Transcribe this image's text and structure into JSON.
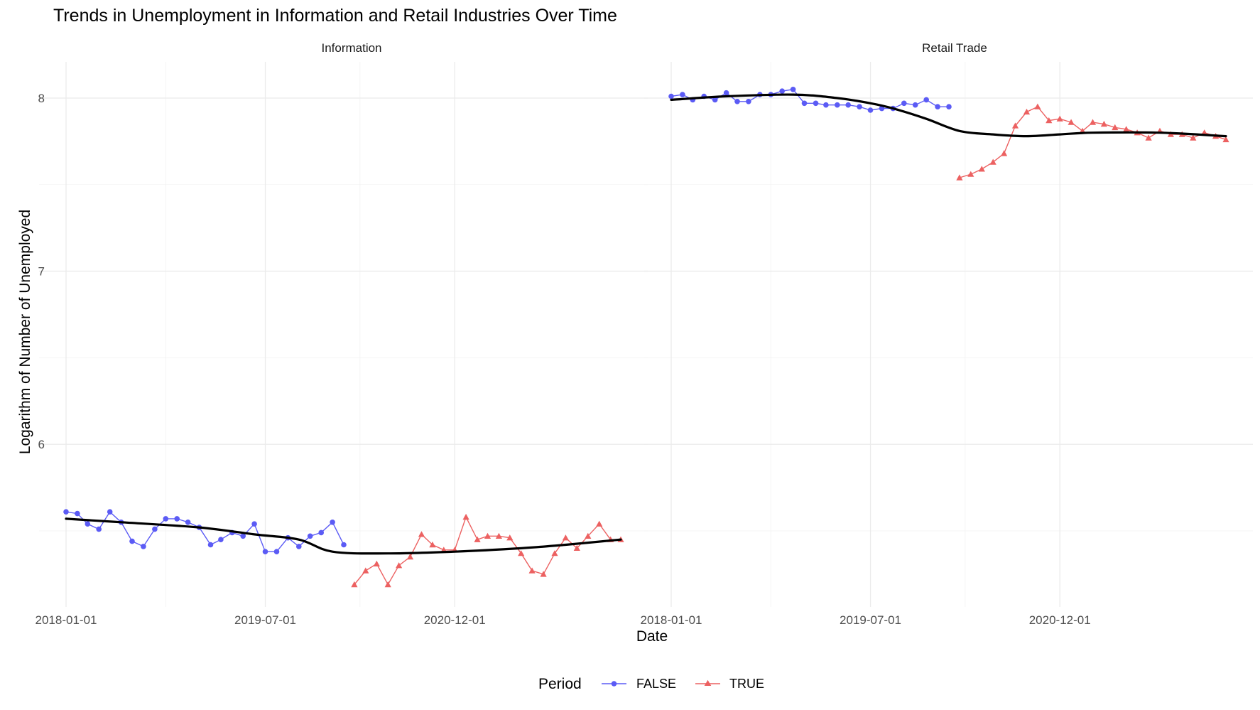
{
  "chart_data": {
    "type": "line",
    "title": "Trends in Unemployment in Information and Retail Industries Over Time",
    "xlabel": "Date",
    "ylabel": "Logarithm of Number of Unemployed",
    "x_ticks": [
      "2018-01-01",
      "2019-07-01",
      "2020-12-01"
    ],
    "y_ticks": [
      6,
      7,
      8
    ],
    "xlim": [
      "2018-01-01",
      "2022-03-01"
    ],
    "ylim": [
      5.11,
      8.16
    ],
    "grid": true,
    "legend": {
      "title": "Period",
      "position": "bottom",
      "entries": [
        {
          "label": "FALSE",
          "shape": "circle",
          "color": "#5b5bf5"
        },
        {
          "label": "TRUE",
          "shape": "triangle",
          "color": "#ec6161"
        }
      ]
    },
    "smooth_color": "#000000",
    "panels": [
      {
        "name": "Information",
        "series": [
          {
            "name": "FALSE",
            "x": [
              "2018-01-01",
              "2018-02-01",
              "2018-03-01",
              "2018-04-01",
              "2018-05-01",
              "2018-06-01",
              "2018-07-01",
              "2018-08-01",
              "2018-09-01",
              "2018-10-01",
              "2018-11-01",
              "2018-12-01",
              "2019-01-01",
              "2019-02-01",
              "2019-03-01",
              "2019-04-01",
              "2019-05-01",
              "2019-06-01",
              "2019-07-01",
              "2019-08-01",
              "2019-09-01",
              "2019-10-01",
              "2019-11-01",
              "2019-12-01",
              "2020-01-01",
              "2020-02-01"
            ],
            "y": [
              5.61,
              5.6,
              5.54,
              5.51,
              5.61,
              5.55,
              5.44,
              5.41,
              5.51,
              5.57,
              5.57,
              5.55,
              5.52,
              5.42,
              5.45,
              5.49,
              5.47,
              5.54,
              5.38,
              5.38,
              5.46,
              5.41,
              5.47,
              5.49,
              5.55,
              5.42
            ]
          },
          {
            "name": "TRUE",
            "x": [
              "2020-03-01",
              "2020-04-01",
              "2020-05-01",
              "2020-06-01",
              "2020-07-01",
              "2020-08-01",
              "2020-09-01",
              "2020-10-01",
              "2020-11-01",
              "2020-12-01",
              "2021-01-01",
              "2021-02-01",
              "2021-03-01",
              "2021-04-01",
              "2021-05-01",
              "2021-06-01",
              "2021-07-01",
              "2021-08-01",
              "2021-09-01",
              "2021-10-01",
              "2021-11-01",
              "2021-12-01",
              "2022-01-01",
              "2022-02-01",
              "2022-03-01"
            ],
            "y": [
              5.19,
              5.27,
              5.31,
              5.19,
              5.3,
              5.35,
              5.48,
              5.42,
              5.39,
              5.39,
              5.58,
              5.45,
              5.47,
              5.47,
              5.46,
              5.37,
              5.27,
              5.25,
              5.37,
              5.46,
              5.4,
              5.47,
              5.54,
              5.45,
              5.45
            ]
          }
        ],
        "smooth": {
          "x": [
            "2018-01-01",
            "2018-06-01",
            "2019-01-01",
            "2019-06-01",
            "2019-10-01",
            "2020-01-01",
            "2020-06-01",
            "2020-12-01",
            "2021-06-01",
            "2021-10-01",
            "2022-03-01"
          ],
          "y": [
            5.57,
            5.55,
            5.52,
            5.48,
            5.45,
            5.38,
            5.37,
            5.38,
            5.4,
            5.42,
            5.45
          ]
        }
      },
      {
        "name": "Retail Trade",
        "series": [
          {
            "name": "FALSE",
            "x": [
              "2018-01-01",
              "2018-02-01",
              "2018-03-01",
              "2018-04-01",
              "2018-05-01",
              "2018-06-01",
              "2018-07-01",
              "2018-08-01",
              "2018-09-01",
              "2018-10-01",
              "2018-11-01",
              "2018-12-01",
              "2019-01-01",
              "2019-02-01",
              "2019-03-01",
              "2019-04-01",
              "2019-05-01",
              "2019-06-01",
              "2019-07-01",
              "2019-08-01",
              "2019-09-01",
              "2019-10-01",
              "2019-11-01",
              "2019-12-01",
              "2020-01-01",
              "2020-02-01"
            ],
            "y": [
              8.01,
              8.02,
              7.99,
              8.01,
              7.99,
              8.03,
              7.98,
              7.98,
              8.02,
              8.02,
              8.04,
              8.05,
              7.97,
              7.97,
              7.96,
              7.96,
              7.96,
              7.95,
              7.93,
              7.94,
              7.94,
              7.97,
              7.96,
              7.99,
              7.95,
              7.95
            ]
          },
          {
            "name": "TRUE",
            "x": [
              "2020-03-01",
              "2020-04-01",
              "2020-05-01",
              "2020-06-01",
              "2020-07-01",
              "2020-08-01",
              "2020-09-01",
              "2020-10-01",
              "2020-11-01",
              "2020-12-01",
              "2021-01-01",
              "2021-02-01",
              "2021-03-01",
              "2021-04-01",
              "2021-05-01",
              "2021-06-01",
              "2021-07-01",
              "2021-08-01",
              "2021-09-01",
              "2021-10-01",
              "2021-11-01",
              "2021-12-01",
              "2022-01-01",
              "2022-02-01",
              "2022-03-01"
            ],
            "y": [
              7.54,
              7.56,
              7.59,
              7.63,
              7.68,
              7.84,
              7.92,
              7.95,
              7.87,
              7.88,
              7.86,
              7.81,
              7.86,
              7.85,
              7.83,
              7.82,
              7.8,
              7.77,
              7.81,
              7.79,
              7.79,
              7.77,
              7.8,
              7.78,
              7.76
            ]
          }
        ],
        "smooth": {
          "x": [
            "2018-01-01",
            "2018-06-01",
            "2018-12-01",
            "2019-04-01",
            "2019-07-01",
            "2019-09-01",
            "2019-12-01",
            "2020-03-01",
            "2020-06-01",
            "2020-09-01",
            "2020-12-01",
            "2021-03-01",
            "2021-09-01",
            "2022-03-01"
          ],
          "y": [
            7.99,
            8.01,
            8.02,
            8.0,
            7.97,
            7.94,
            7.88,
            7.81,
            7.79,
            7.78,
            7.79,
            7.8,
            7.8,
            7.78
          ]
        }
      }
    ]
  }
}
